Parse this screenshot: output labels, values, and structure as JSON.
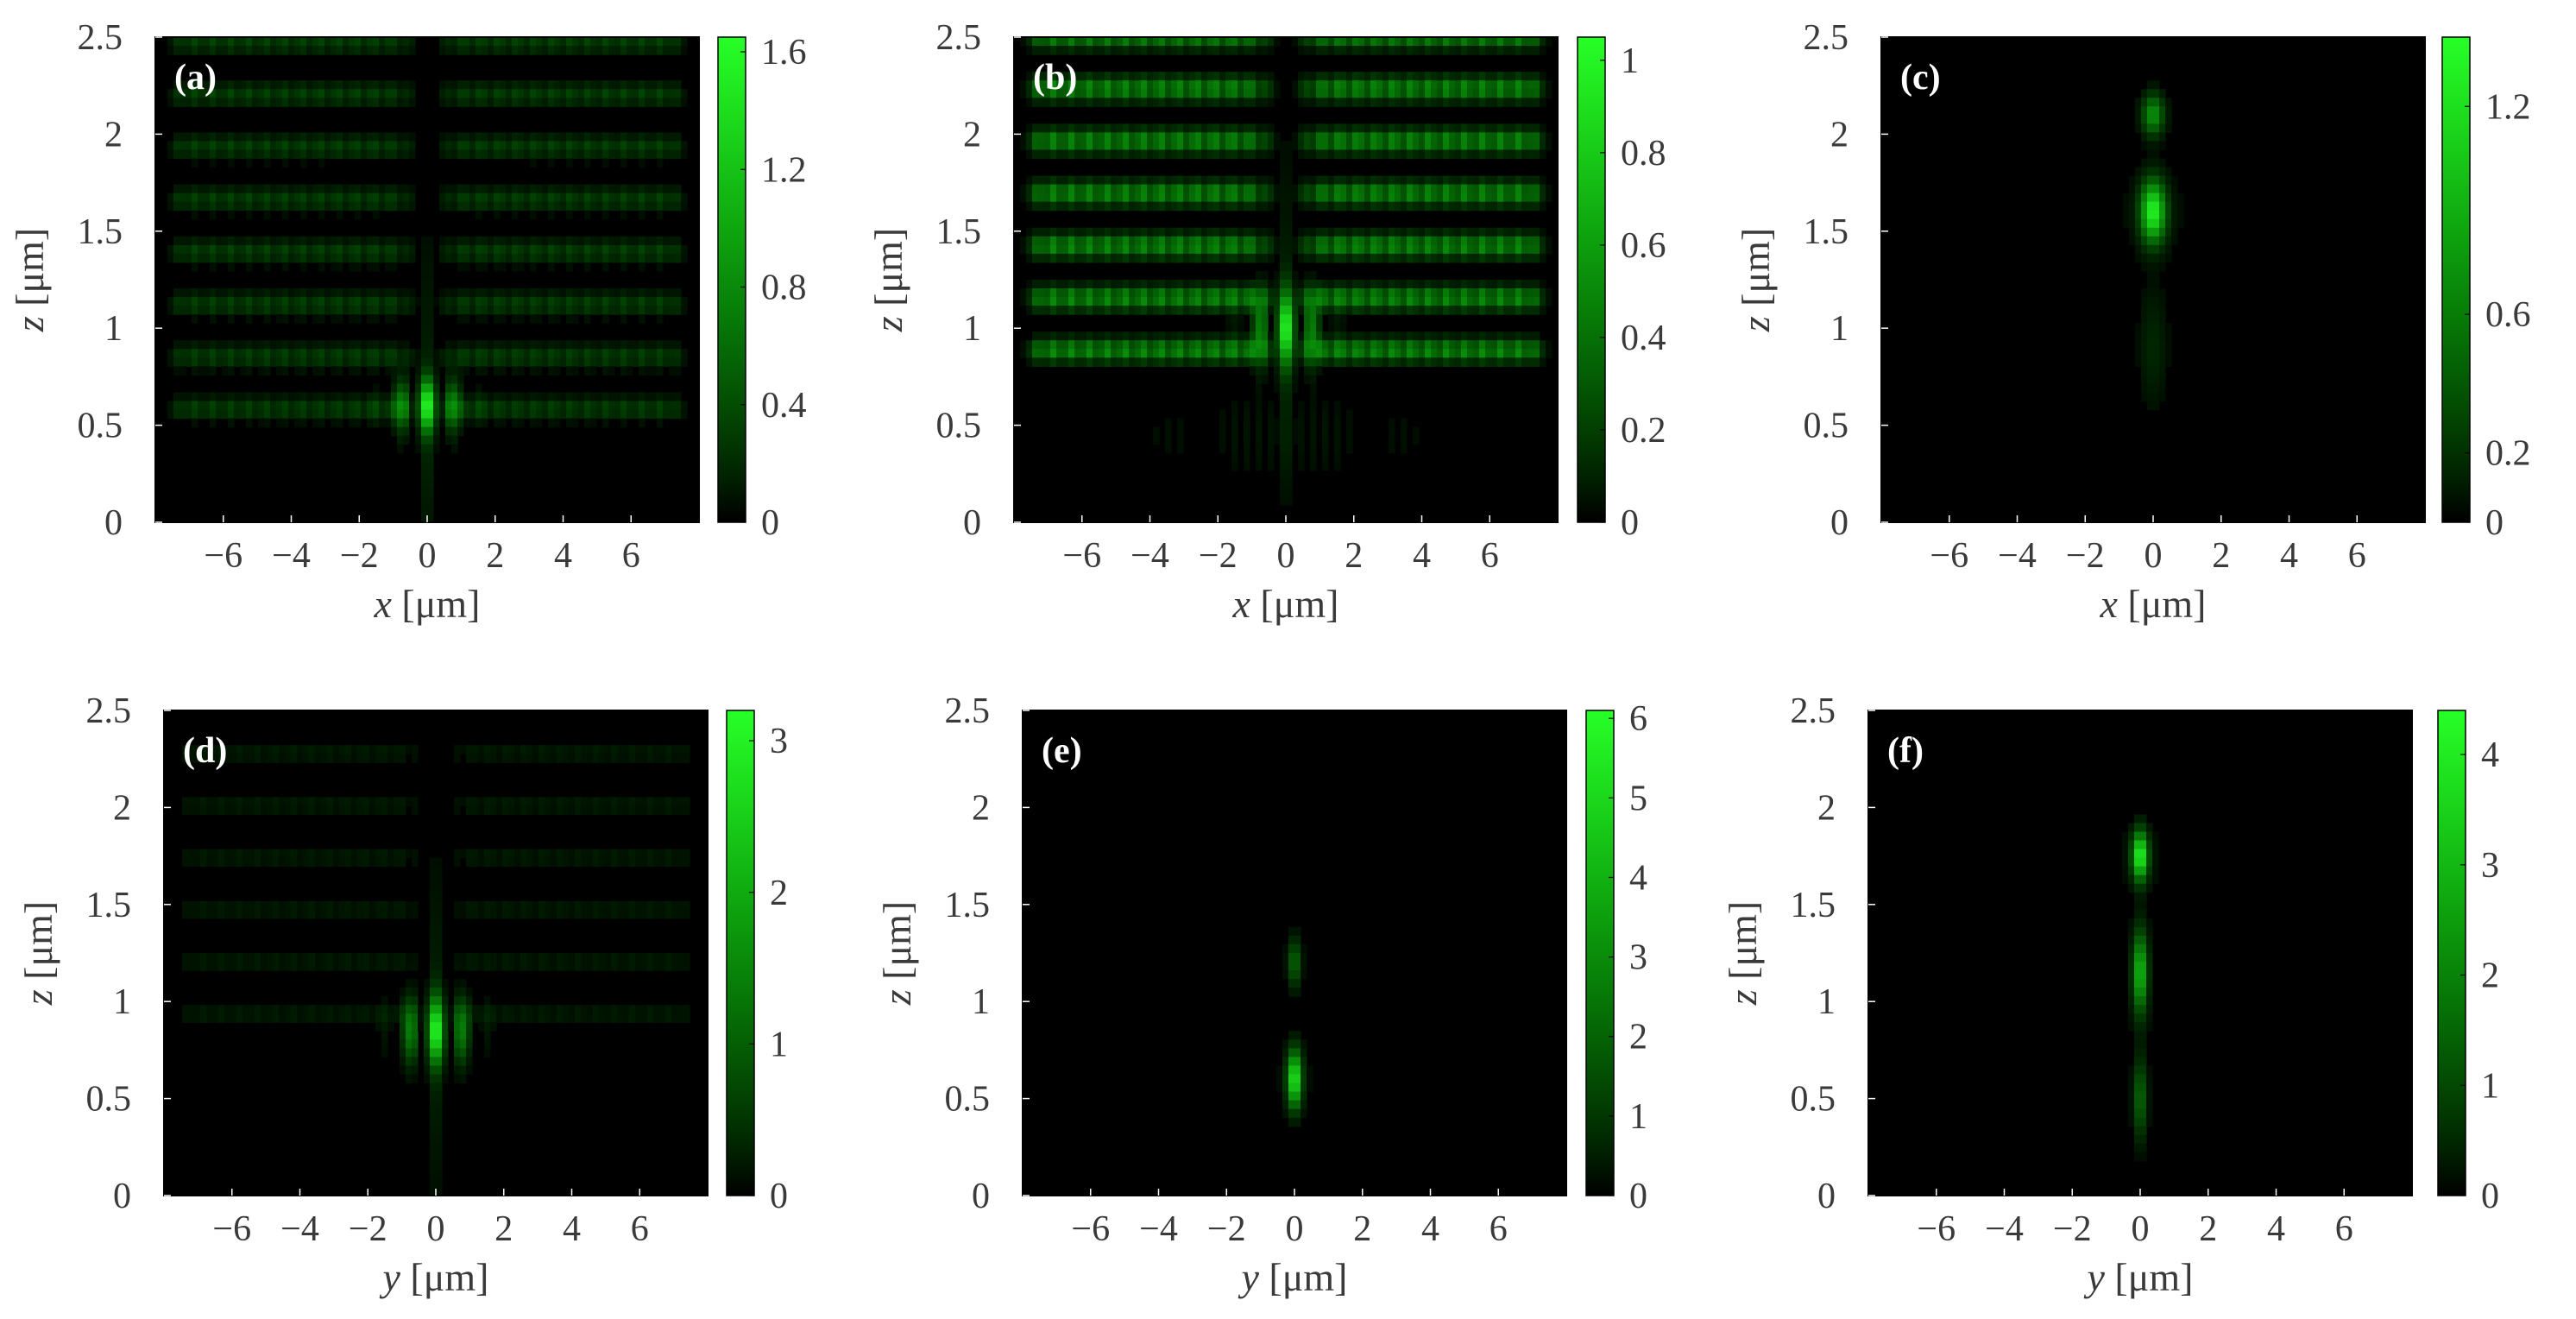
{
  "figure": {
    "description_panels": 6
  },
  "chart_data": [
    {
      "panel": "(a)",
      "type": "heatmap",
      "colormap": "black-green",
      "xlabel_var": "x",
      "xlabel_unit": " [μm]",
      "ylabel_var": "z",
      "ylabel_unit": " [μm]",
      "xlim": [
        -8,
        8
      ],
      "ylim": [
        0,
        2.5
      ],
      "xticks": [
        -6,
        -4,
        -2,
        0,
        2,
        4,
        6
      ],
      "xtick_labels": [
        "−6",
        "−4",
        "−2",
        "0",
        "2",
        "4",
        "6"
      ],
      "yticks": [
        0,
        0.5,
        1,
        1.5,
        2,
        2.5
      ],
      "ytick_labels": [
        "0",
        "0.5",
        "1",
        "1.5",
        "2",
        "2.5"
      ],
      "colorbar": {
        "min": 0,
        "max": 1.65,
        "ticks": [
          0,
          0.4,
          0.8,
          1.2,
          1.6
        ],
        "tick_labels": [
          "0",
          "0.4",
          "0.8",
          "1.2",
          "1.6"
        ]
      },
      "features": {
        "mode": "bands",
        "band_start": 0.45,
        "band_period": 0.27,
        "band_end": 2.5,
        "band_strength": 0.35,
        "center_gap_width": 0.6,
        "center_z": 0.6,
        "center_peak": 1.6,
        "center_sigma_z": 0.13
      }
    },
    {
      "panel": "(b)",
      "type": "heatmap",
      "colormap": "black-green",
      "xlabel_var": "x",
      "xlabel_unit": " [μm]",
      "ylabel_var": "z",
      "ylabel_unit": " [μm]",
      "xlim": [
        -8,
        8
      ],
      "ylim": [
        0,
        2.5
      ],
      "xticks": [
        -6,
        -4,
        -2,
        0,
        2,
        4,
        6
      ],
      "xtick_labels": [
        "−6",
        "−4",
        "−2",
        "0",
        "2",
        "4",
        "6"
      ],
      "yticks": [
        0,
        0.5,
        1,
        1.5,
        2,
        2.5
      ],
      "ytick_labels": [
        "0",
        "0.5",
        "1",
        "1.5",
        "2",
        "2.5"
      ],
      "colorbar": {
        "min": 0,
        "max": 1.05,
        "ticks": [
          0,
          0.2,
          0.4,
          0.6,
          0.8,
          1
        ],
        "tick_labels": [
          "0",
          "0.2",
          "0.4",
          "0.6",
          "0.8",
          "1"
        ]
      },
      "features": {
        "mode": "bands",
        "band_start": 0.75,
        "band_period": 0.27,
        "band_end": 2.5,
        "band_strength": 0.55,
        "center_gap_width": 0.7,
        "center_z": 1.0,
        "center_peak": 1.0,
        "center_sigma_z": 0.18
      }
    },
    {
      "panel": "(c)",
      "type": "heatmap",
      "colormap": "black-green",
      "xlabel_var": "x",
      "xlabel_unit": " [μm]",
      "ylabel_var": "z",
      "ylabel_unit": " [μm]",
      "xlim": [
        -8,
        8
      ],
      "ylim": [
        0,
        2.5
      ],
      "xticks": [
        -6,
        -4,
        -2,
        0,
        2,
        4,
        6
      ],
      "xtick_labels": [
        "−6",
        "−4",
        "−2",
        "0",
        "2",
        "4",
        "6"
      ],
      "yticks": [
        0,
        0.5,
        1,
        1.5,
        2,
        2.5
      ],
      "ytick_labels": [
        "0",
        "0.5",
        "1",
        "1.5",
        "2",
        "2.5"
      ],
      "colorbar": {
        "min": 0,
        "max": 1.4,
        "ticks": [
          0,
          0.2,
          0.6,
          1.2
        ],
        "tick_labels": [
          "0",
          "0.2",
          "0.6",
          "1.2"
        ]
      },
      "features": {
        "mode": "focus",
        "spots": [
          {
            "z": 1.6,
            "peak": 1.3,
            "sigma_z": 0.15,
            "sigma_x": 0.35
          },
          {
            "z": 2.1,
            "peak": 0.7,
            "sigma_z": 0.1,
            "sigma_x": 0.3
          },
          {
            "z": 0.9,
            "peak": 0.15,
            "sigma_z": 0.3,
            "sigma_x": 0.4
          }
        ],
        "spread": 3.5
      }
    },
    {
      "panel": "(d)",
      "type": "heatmap",
      "colormap": "black-green",
      "xlabel_var": "y",
      "xlabel_unit": " [μm]",
      "ylabel_var": "z",
      "ylabel_unit": " [μm]",
      "xlim": [
        -8,
        8
      ],
      "ylim": [
        0,
        2.5
      ],
      "xticks": [
        -6,
        -4,
        -2,
        0,
        2,
        4,
        6
      ],
      "xtick_labels": [
        "−6",
        "−4",
        "−2",
        "0",
        "2",
        "4",
        "6"
      ],
      "yticks": [
        0,
        0.5,
        1,
        1.5,
        2,
        2.5
      ],
      "ytick_labels": [
        "0",
        "0.5",
        "1",
        "1.5",
        "2",
        "2.5"
      ],
      "colorbar": {
        "min": 0,
        "max": 3.2,
        "ticks": [
          0,
          1,
          2,
          3
        ],
        "tick_labels": [
          "0",
          "1",
          "2",
          "3"
        ]
      },
      "features": {
        "mode": "bands",
        "band_start": 0.8,
        "band_period": 0.27,
        "band_end": 2.3,
        "band_strength": 0.25,
        "center_gap_width": 0.6,
        "center_z": 0.85,
        "center_peak": 3.1,
        "center_sigma_z": 0.16
      }
    },
    {
      "panel": "(e)",
      "type": "heatmap",
      "colormap": "black-green",
      "xlabel_var": "y",
      "xlabel_unit": " [μm]",
      "ylabel_var": "z",
      "ylabel_unit": " [μm]",
      "xlim": [
        -8,
        8
      ],
      "ylim": [
        0,
        2.5
      ],
      "xticks": [
        -6,
        -4,
        -2,
        0,
        2,
        4,
        6
      ],
      "xtick_labels": [
        "−6",
        "−4",
        "−2",
        "0",
        "2",
        "4",
        "6"
      ],
      "yticks": [
        0,
        0.5,
        1,
        1.5,
        2,
        2.5
      ],
      "ytick_labels": [
        "0",
        "0.5",
        "1",
        "1.5",
        "2",
        "2.5"
      ],
      "colorbar": {
        "min": 0,
        "max": 6.1,
        "ticks": [
          0,
          1,
          2,
          3,
          4,
          5,
          6
        ],
        "tick_labels": [
          "0",
          "1",
          "2",
          "3",
          "4",
          "5",
          "6"
        ]
      },
      "features": {
        "mode": "focus",
        "spots": [
          {
            "z": 0.6,
            "peak": 5.5,
            "sigma_z": 0.14,
            "sigma_x": 0.2
          },
          {
            "z": 1.2,
            "peak": 2.0,
            "sigma_z": 0.12,
            "sigma_x": 0.18
          }
        ],
        "spread": 2.5
      }
    },
    {
      "panel": "(f)",
      "type": "heatmap",
      "colormap": "black-green",
      "xlabel_var": "y",
      "xlabel_unit": " [μm]",
      "ylabel_var": "z",
      "ylabel_unit": " [μm]",
      "xlim": [
        -8,
        8
      ],
      "ylim": [
        0,
        2.5
      ],
      "xticks": [
        -6,
        -4,
        -2,
        0,
        2,
        4,
        6
      ],
      "xtick_labels": [
        "−6",
        "−4",
        "−2",
        "0",
        "2",
        "4",
        "6"
      ],
      "yticks": [
        0,
        0.5,
        1,
        1.5,
        2,
        2.5
      ],
      "ytick_labels": [
        "0",
        "0.5",
        "1",
        "1.5",
        "2",
        "2.5"
      ],
      "colorbar": {
        "min": 0,
        "max": 4.4,
        "ticks": [
          0,
          1,
          2,
          3,
          4
        ],
        "tick_labels": [
          "0",
          "1",
          "2",
          "3",
          "4"
        ]
      },
      "features": {
        "mode": "focus",
        "spots": [
          {
            "z": 1.75,
            "peak": 4.2,
            "sigma_z": 0.12,
            "sigma_x": 0.22
          },
          {
            "z": 1.15,
            "peak": 3.0,
            "sigma_z": 0.2,
            "sigma_x": 0.2
          },
          {
            "z": 0.5,
            "peak": 1.5,
            "sigma_z": 0.2,
            "sigma_x": 0.18
          }
        ],
        "spread": 3.0
      }
    }
  ]
}
